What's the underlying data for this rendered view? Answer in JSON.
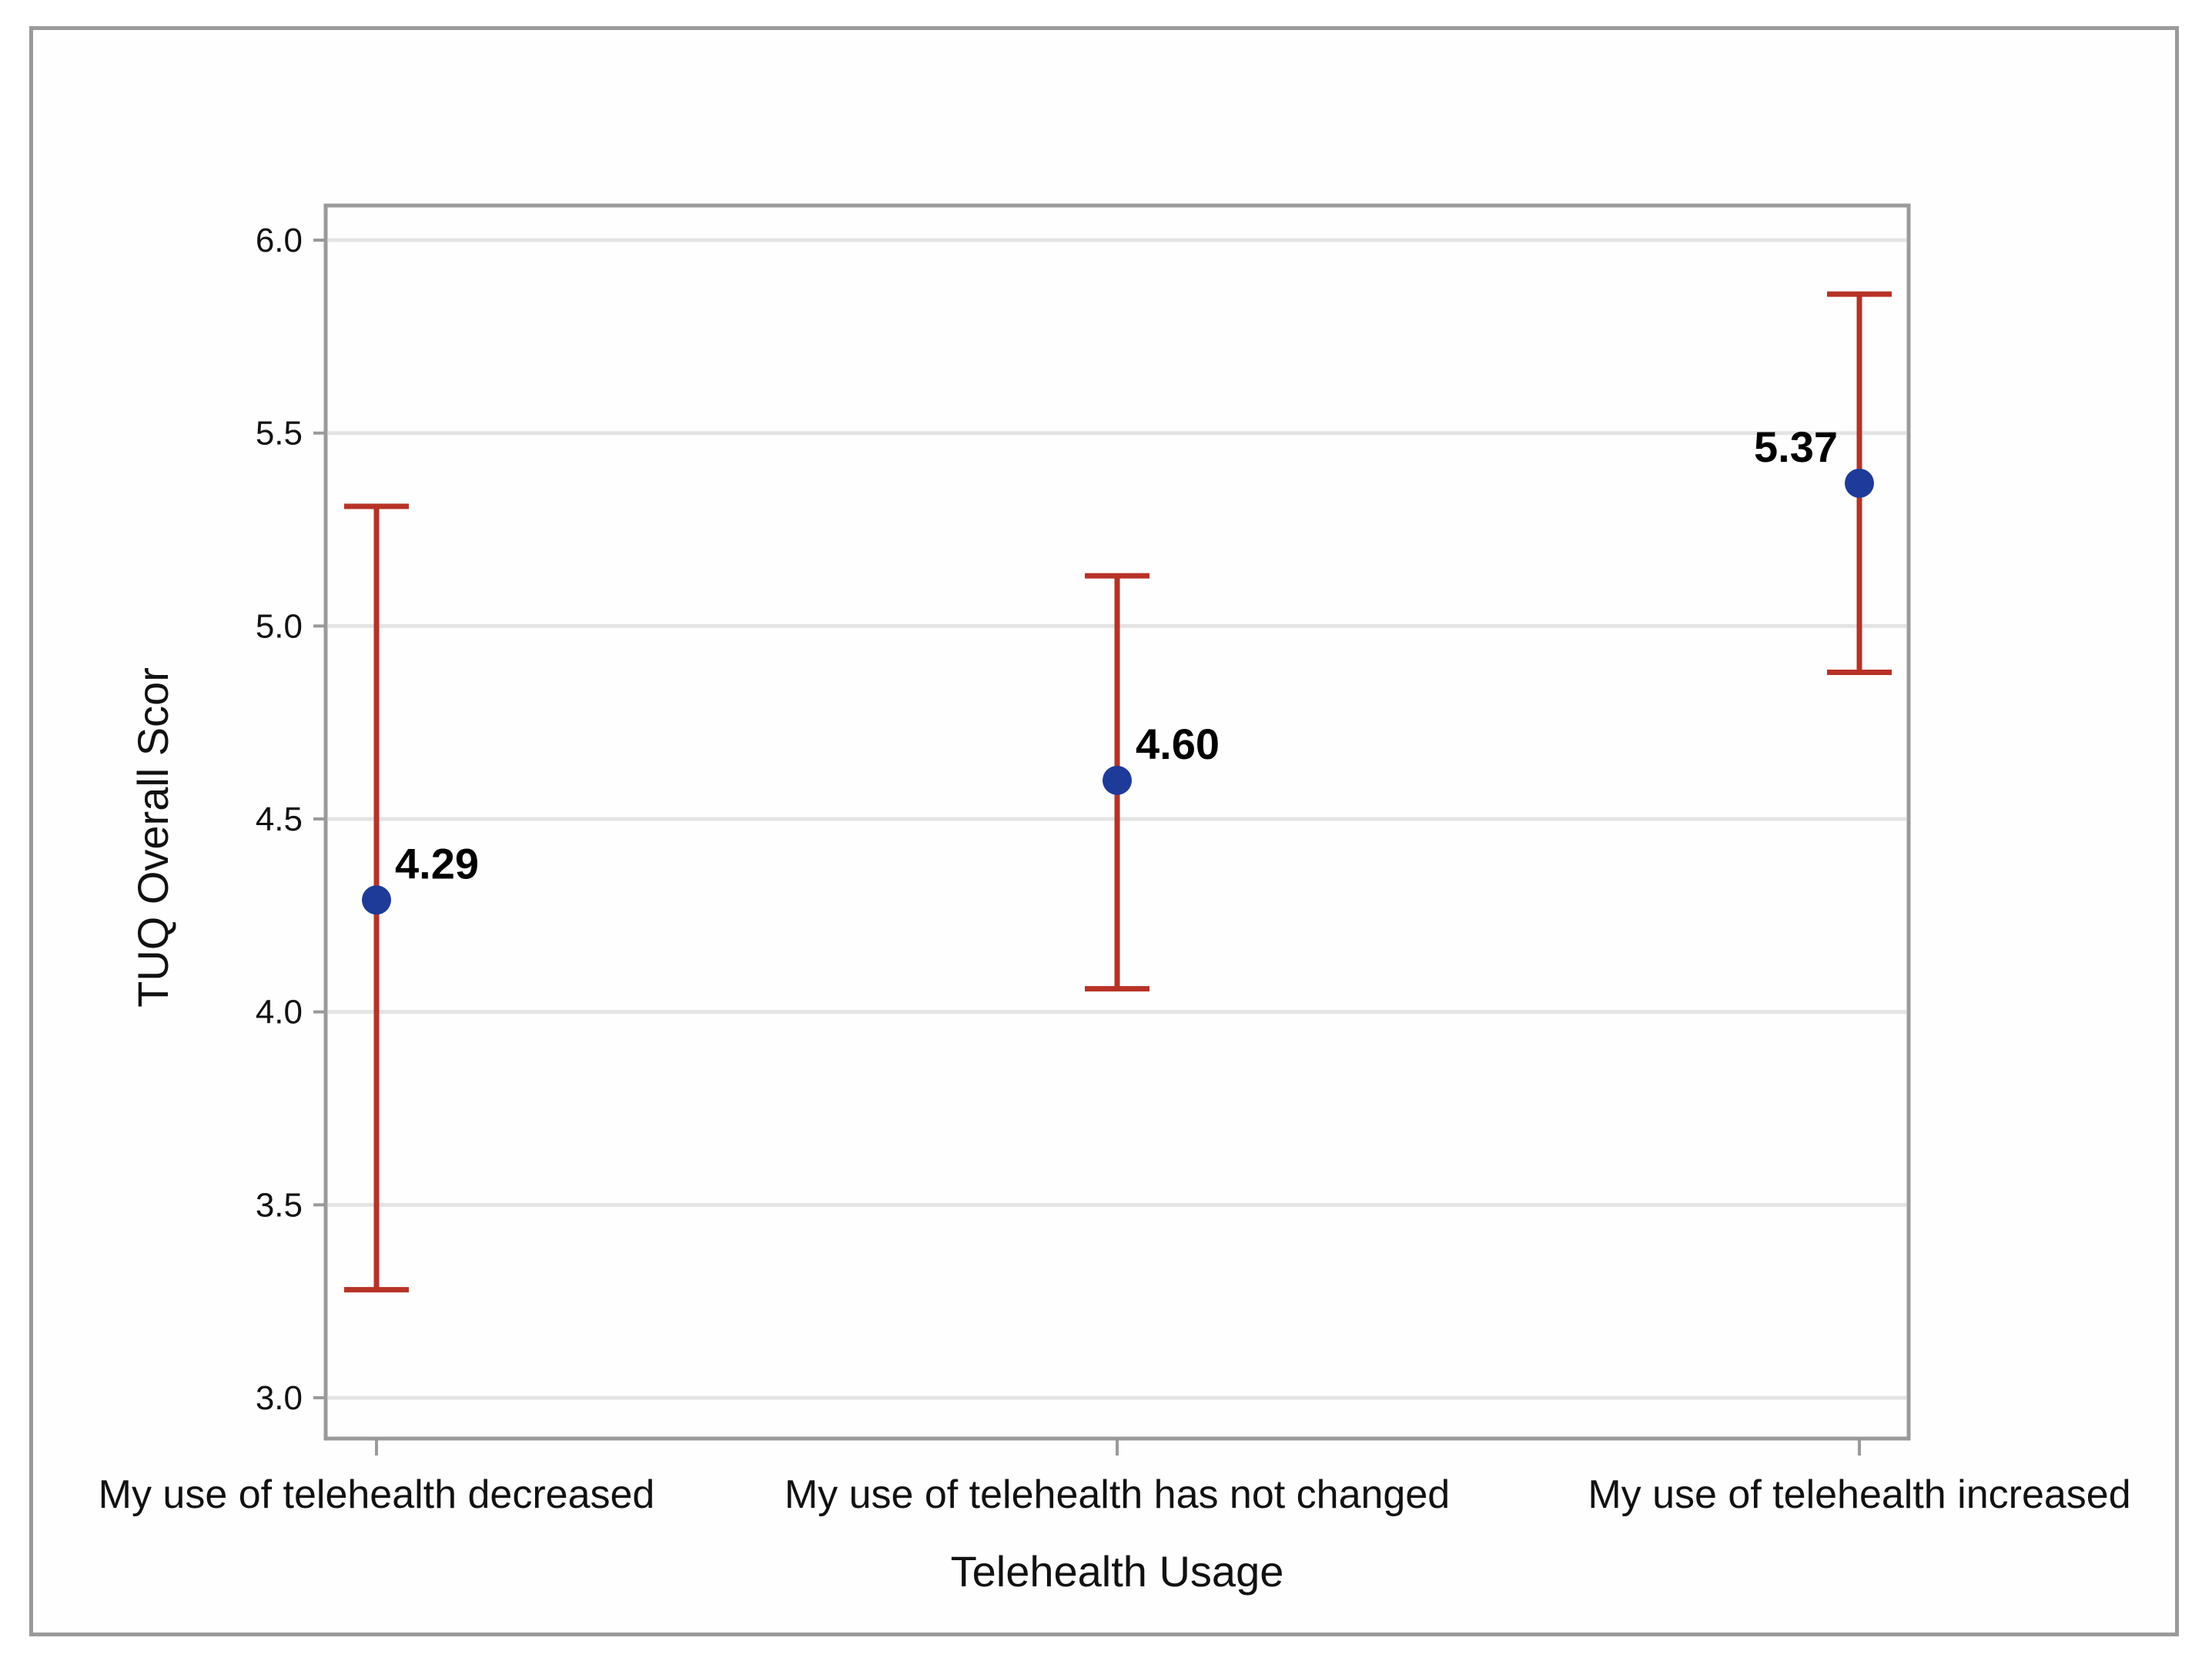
{
  "chart_data": {
    "type": "scatter",
    "title": "",
    "xlabel": "Telehealth Usage",
    "ylabel": "TUQ Overall Scor",
    "ylim": [
      3.0,
      6.0
    ],
    "y_ticks": [
      "3.0",
      "3.5",
      "4.0",
      "4.5",
      "5.0",
      "5.5",
      "6.0"
    ],
    "grid": "horizontal",
    "categories": [
      "My use of telehealth decreased",
      "My use of telehealth has not changed",
      "My use of telehealth increased"
    ],
    "values": [
      4.29,
      4.6,
      5.37
    ],
    "value_labels": [
      "4.29",
      "4.60",
      "5.37"
    ],
    "error_bars": [
      {
        "lower": 3.28,
        "upper": 5.31
      },
      {
        "lower": 4.06,
        "upper": 5.13
      },
      {
        "lower": 4.88,
        "upper": 5.86
      }
    ],
    "point_color": "#1f3b99",
    "error_bar_color": "#b83226",
    "grid_color": "#e4e4e4",
    "axis_color": "#9a9a9a"
  }
}
